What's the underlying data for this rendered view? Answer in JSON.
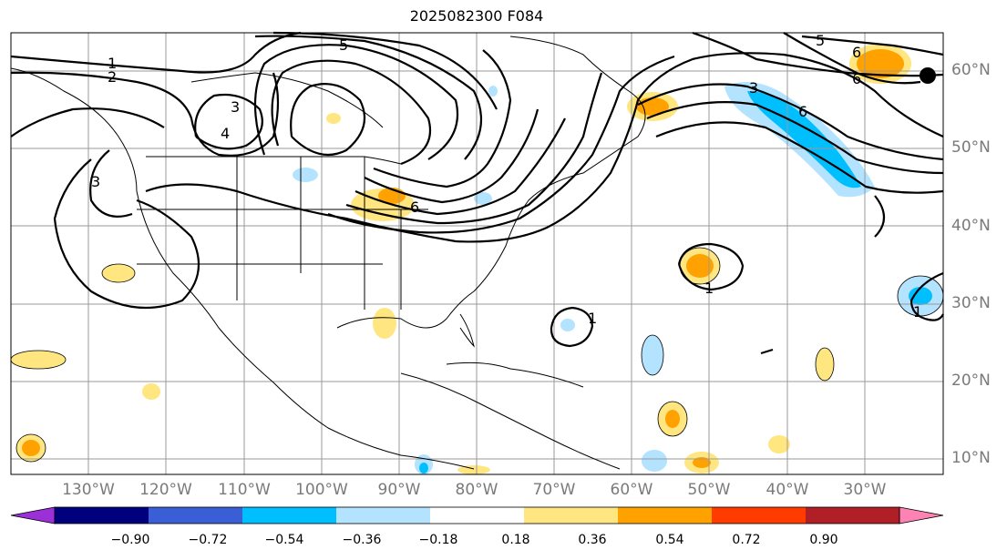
{
  "title": "2025082300 F084",
  "lat_labels": [
    "60°N",
    "50°N",
    "40°N",
    "30°N",
    "20°N",
    "10°N"
  ],
  "lon_labels": [
    "130°W",
    "120°W",
    "110°W",
    "100°W",
    "90°W",
    "80°W",
    "70°W",
    "60°W",
    "50°W",
    "40°W",
    "30°W"
  ],
  "colorbar": {
    "ticks": [
      "−0.90",
      "−0.72",
      "−0.54",
      "−0.36",
      "−0.18",
      "0.18",
      "0.36",
      "0.54",
      "0.72",
      "0.90"
    ],
    "colors": [
      "#9b30d9",
      "#00007f",
      "#3a5ed6",
      "#00bfff",
      "#b3e3ff",
      "#ffffff",
      "#ffe680",
      "#ffa200",
      "#ff3b00",
      "#b01e26",
      "#ff82b4"
    ]
  },
  "contour_labels": [
    "1",
    "2",
    "3",
    "3",
    "4",
    "5",
    "6",
    "6",
    "6",
    "3",
    "1",
    "1",
    "5",
    "6",
    "1"
  ],
  "marker": "black-dot"
}
